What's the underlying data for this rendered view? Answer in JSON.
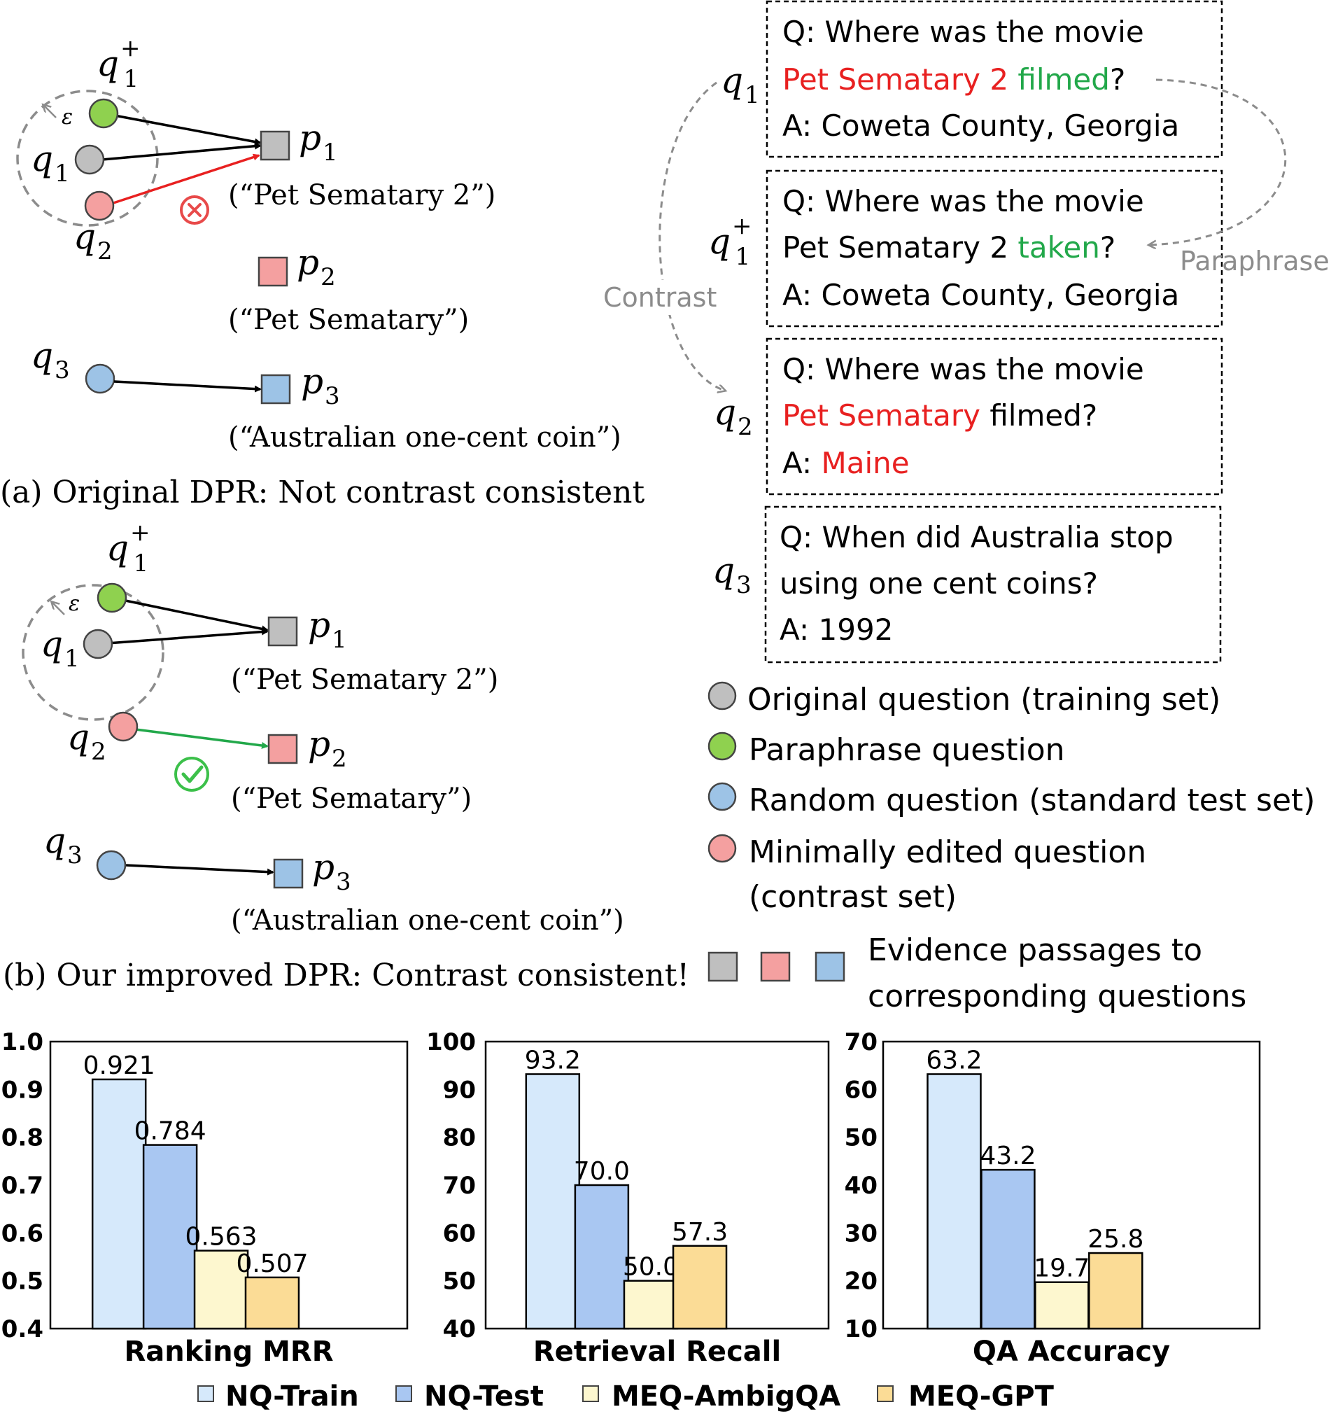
{
  "panel_a": {
    "labels": {
      "q1plus": "q",
      "q1": "q",
      "q2": "q",
      "q3": "q",
      "p1": "p",
      "p2": "p",
      "p3": "p",
      "eps": "ε"
    },
    "p1_caption": "(“Pet Sematary 2”)",
    "p2_caption": "(“Pet Sematary”)",
    "p3_caption": "(“Australian one-cent coin”)",
    "caption": "(a) Original DPR: Not contrast consistent"
  },
  "panel_b": {
    "p1_caption": "(“Pet Sematary 2”)",
    "p2_caption": "(“Pet Sematary”)",
    "p3_caption": "(“Australian one-cent coin”)",
    "caption": "(b) Our improved DPR: Contrast consistent!"
  },
  "subscripts": {
    "one": "1",
    "two": "2",
    "three": "3",
    "plus": "+"
  },
  "qa_boxes": {
    "box1": {
      "line1": "Q: Where was the movie",
      "line2_a": "Pet Sematary 2",
      "line2_b": " filmed",
      "line2_c": "?",
      "line3": "A: Coweta County, Georgia"
    },
    "box2": {
      "line1": "Q: Where was the movie",
      "line2_a": "Pet Sematary 2 ",
      "line2_b": "taken",
      "line2_c": "?",
      "line3": "A: Coweta County, Georgia"
    },
    "box3": {
      "line1": "Q: Where was the movie",
      "line2_a": "Pet Sematary",
      "line2_b": " filmed?",
      "line3_a": "A: ",
      "line3_b": "Maine"
    },
    "box4": {
      "line1": "Q: When did Australia stop",
      "line2": "using one cent coins?",
      "line3": "A: 1992"
    },
    "paraphrase_label": "Paraphrase",
    "contrast_label": "Contrast"
  },
  "legend": {
    "original": "Original question (training set)",
    "paraphrase": "Paraphrase question",
    "random": "Random question (standard test set)",
    "minimal_1": "Minimally edited question",
    "minimal_2": "(contrast set)",
    "evidence_1": "Evidence passages to",
    "evidence_2": "corresponding questions"
  },
  "colors": {
    "gray": "#bfbfbf",
    "green": "#8fd14f",
    "blue": "#9dc3e6",
    "pink": "#f4a0a0",
    "red": "#e82020",
    "green_text": "#22a84a",
    "check": "#3cc04a",
    "dash": "#8c8c8c",
    "bar_train": "#d6e9fb",
    "bar_test": "#a9c7f2",
    "bar_ambig": "#fdf7cf",
    "bar_gpt": "#fbdc96"
  },
  "chart_data": [
    {
      "type": "bar",
      "title": "",
      "xlabel": "Ranking MRR",
      "ylabel": "",
      "ylim": [
        0.4,
        1.0
      ],
      "yticks": [
        "0.4",
        "0.5",
        "0.6",
        "0.7",
        "0.8",
        "0.9",
        "1.0"
      ],
      "categories": [
        "NQ-Train",
        "NQ-Test",
        "MEQ-AmbigQA",
        "MEQ-GPT"
      ],
      "values": [
        0.921,
        0.784,
        0.563,
        0.507
      ],
      "value_labels": [
        "0.921",
        "0.784",
        "0.563",
        "0.507"
      ]
    },
    {
      "type": "bar",
      "title": "",
      "xlabel": "Retrieval Recall",
      "ylabel": "",
      "ylim": [
        40,
        100
      ],
      "yticks": [
        "40",
        "50",
        "60",
        "70",
        "80",
        "90",
        "100"
      ],
      "categories": [
        "NQ-Train",
        "NQ-Test",
        "MEQ-AmbigQA",
        "MEQ-GPT"
      ],
      "values": [
        93.2,
        70.0,
        50.0,
        57.3
      ],
      "value_labels": [
        "93.2",
        "70.0",
        "50.0",
        "57.3"
      ]
    },
    {
      "type": "bar",
      "title": "",
      "xlabel": "QA Accuracy",
      "ylabel": "",
      "ylim": [
        10,
        70
      ],
      "yticks": [
        "10",
        "20",
        "30",
        "40",
        "50",
        "60",
        "70"
      ],
      "categories": [
        "NQ-Train",
        "NQ-Test",
        "MEQ-AmbigQA",
        "MEQ-GPT"
      ],
      "values": [
        63.2,
        43.2,
        19.7,
        25.8
      ],
      "value_labels": [
        "63.2",
        "43.2",
        "19.7",
        "25.8"
      ]
    }
  ],
  "chart_legend": [
    "NQ-Train",
    "NQ-Test",
    "MEQ-AmbigQA",
    "MEQ-GPT"
  ]
}
